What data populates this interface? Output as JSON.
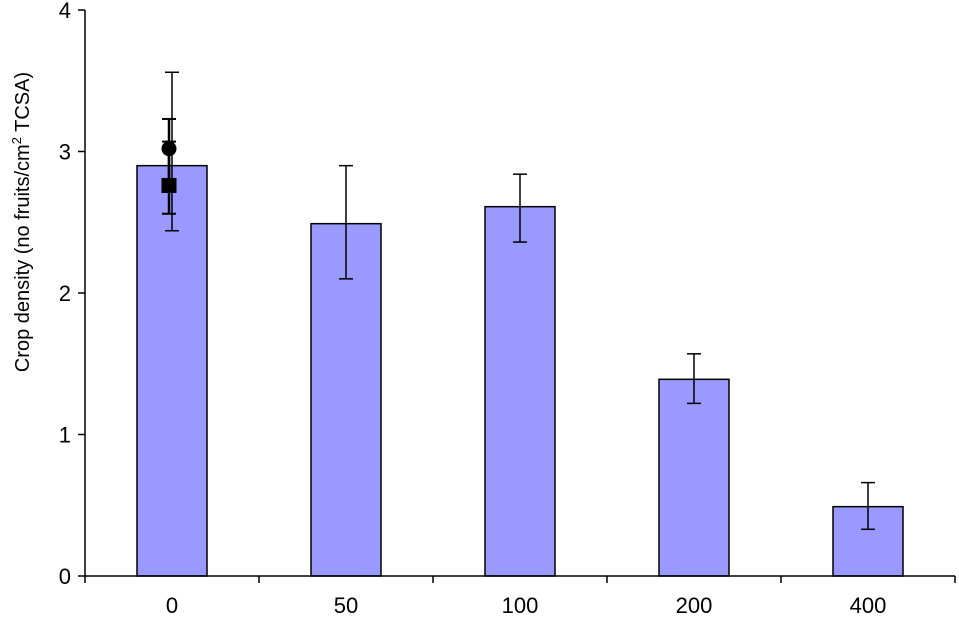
{
  "chart_data": {
    "type": "bar",
    "title": "",
    "xlabel": "",
    "ylabel": {
      "before": "Crop density (no fruits/cm",
      "superscript": "2",
      "after": " TCSA)"
    },
    "categories": [
      "0",
      "50",
      "100",
      "200",
      "400"
    ],
    "values": [
      2.9,
      2.49,
      2.61,
      1.39,
      0.49
    ],
    "error": [
      [
        2.44,
        3.56
      ],
      [
        2.1,
        2.9
      ],
      [
        2.36,
        2.84
      ],
      [
        1.22,
        1.57
      ],
      [
        0.33,
        0.66
      ]
    ],
    "markers": [
      {
        "shape": "circle",
        "category": "0",
        "value": 3.02,
        "error": [
          2.8,
          3.23
        ]
      },
      {
        "shape": "square",
        "category": "0",
        "value": 2.76,
        "error": [
          2.56,
          3.07
        ]
      }
    ],
    "ylim": [
      0,
      4
    ],
    "yticks": [
      "0",
      "1",
      "2",
      "3",
      "4"
    ],
    "grid": false,
    "colors": {
      "bar_fill": "#9999ff",
      "bar_stroke": "#000000",
      "axis": "#000000",
      "marker": "#000000"
    }
  }
}
